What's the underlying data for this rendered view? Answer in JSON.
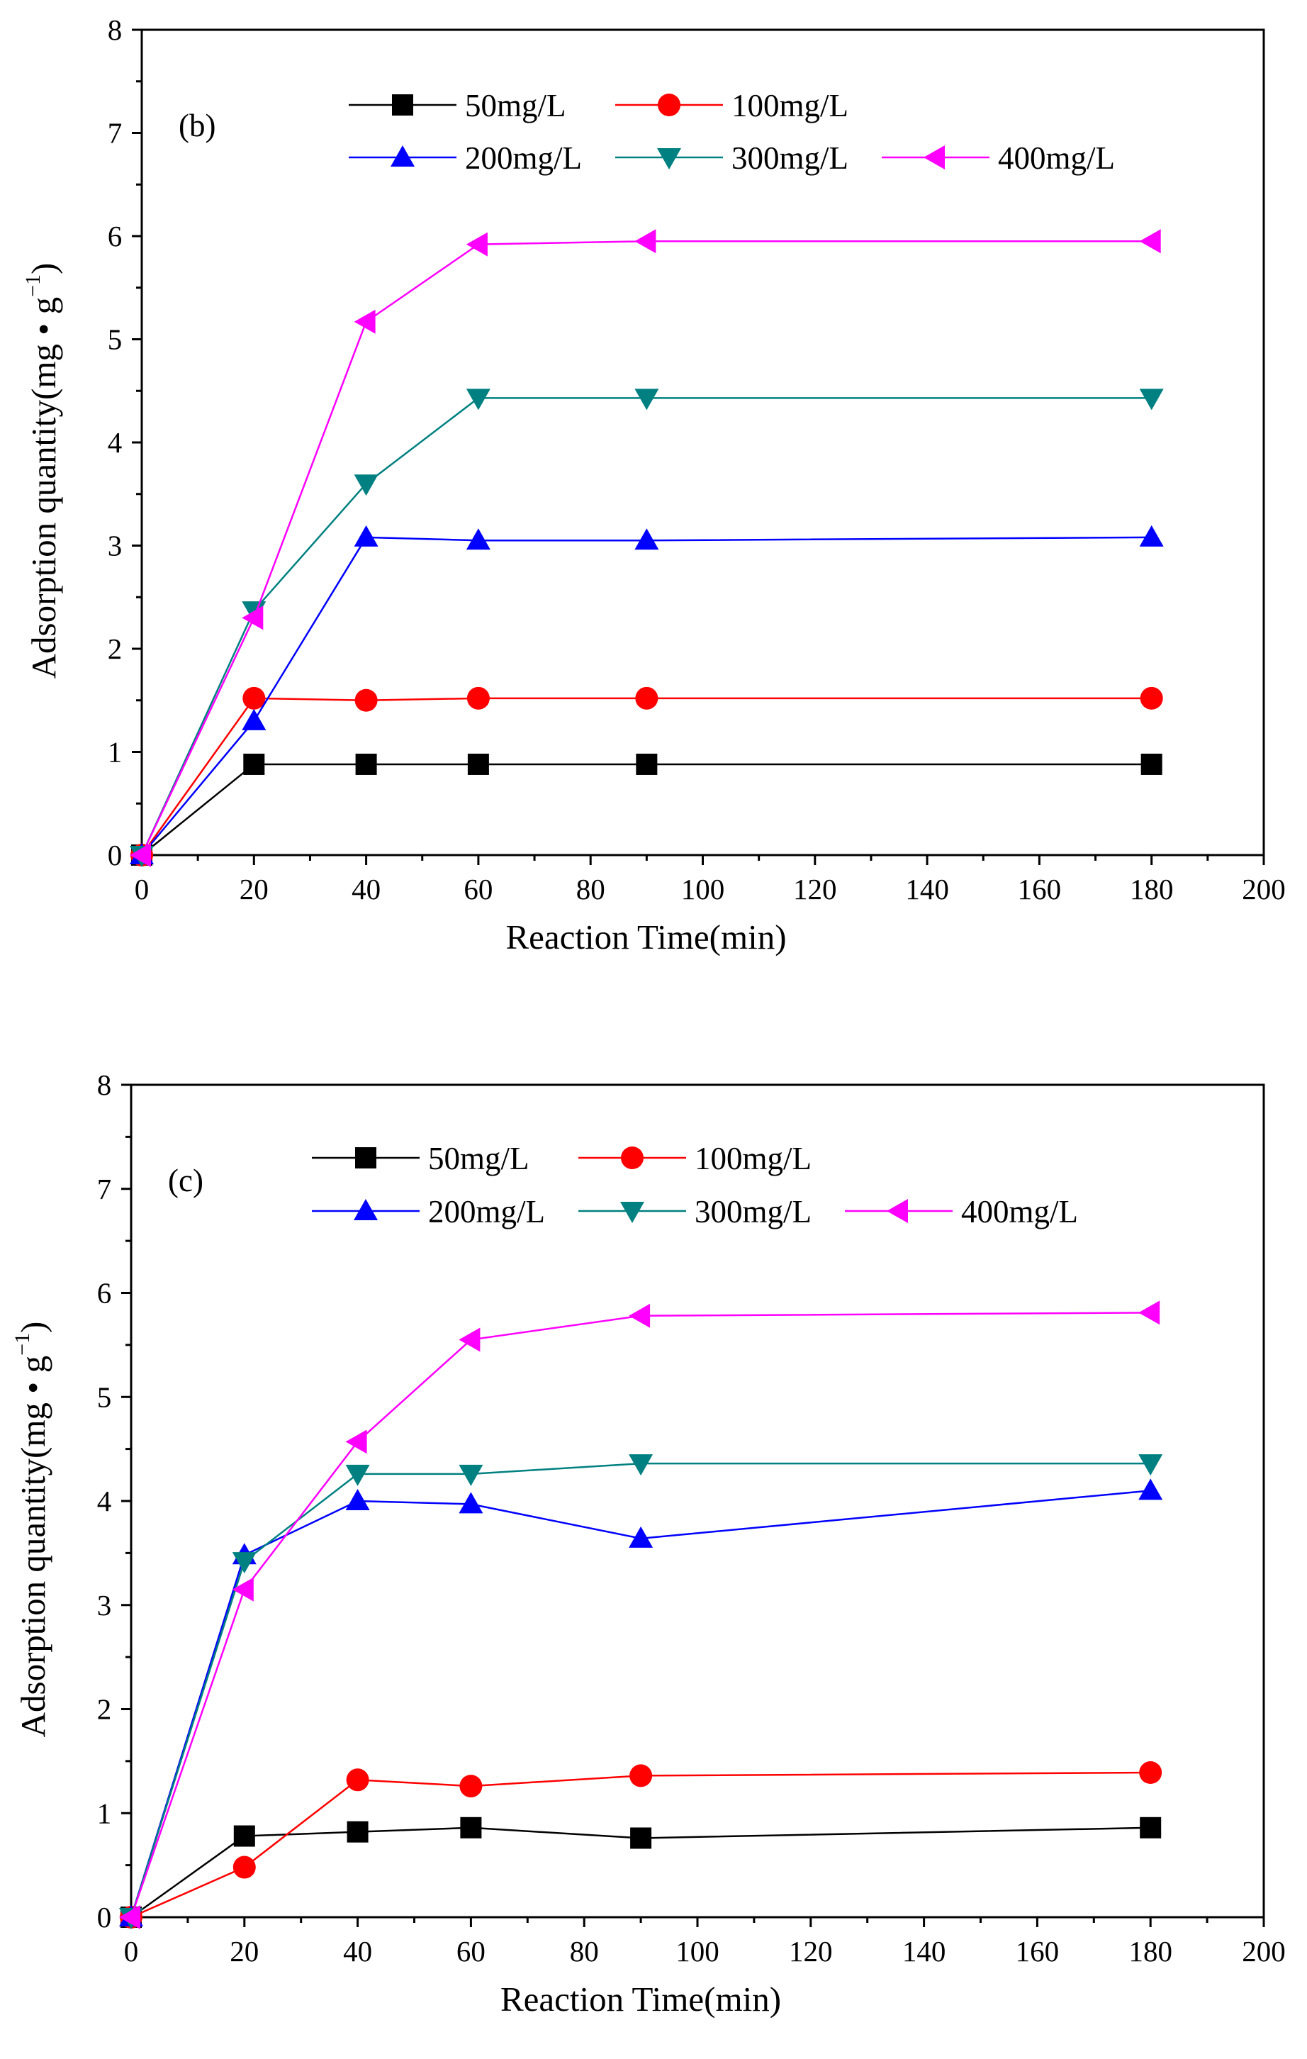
{
  "chart_data": [
    {
      "type": "line",
      "panel_label": "(b)",
      "xlabel": "Reaction Time(min)",
      "ylabel": "Adsorption quantity(mg • g",
      "ylabel_sup": "−1",
      "ylabel_close": ")",
      "xlim": [
        0,
        200
      ],
      "ylim": [
        0,
        8
      ],
      "xticks": [
        0,
        20,
        40,
        60,
        80,
        100,
        120,
        140,
        160,
        180,
        200
      ],
      "yticks": [
        0,
        1,
        2,
        3,
        4,
        5,
        6,
        7,
        8
      ],
      "grid": false,
      "legend_position": "top-right",
      "x": [
        0,
        20,
        40,
        60,
        90,
        180
      ],
      "series": [
        {
          "name": "50mg/L",
          "color": "#000000",
          "marker": "square",
          "values": [
            0,
            0.88,
            0.88,
            0.88,
            0.88,
            0.88
          ]
        },
        {
          "name": "100mg/L",
          "color": "#ff0000",
          "marker": "circle",
          "values": [
            0,
            1.52,
            1.5,
            1.52,
            1.52,
            1.52
          ]
        },
        {
          "name": "200mg/L",
          "color": "#0000ff",
          "marker": "triangle-up",
          "values": [
            0,
            1.3,
            3.08,
            3.05,
            3.05,
            3.08
          ]
        },
        {
          "name": "300mg/L",
          "color": "#008080",
          "marker": "triangle-down",
          "values": [
            0,
            2.37,
            3.6,
            4.43,
            4.43,
            4.43
          ]
        },
        {
          "name": "400mg/L",
          "color": "#ff00ff",
          "marker": "triangle-left",
          "values": [
            0,
            2.3,
            5.17,
            5.92,
            5.95,
            5.95
          ]
        }
      ]
    },
    {
      "type": "line",
      "panel_label": "(c)",
      "xlabel": "Reaction Time(min)",
      "ylabel": "Adsorption quantity(mg • g",
      "ylabel_sup": "−1",
      "ylabel_close": ")",
      "xlim": [
        0,
        200
      ],
      "ylim": [
        0,
        8
      ],
      "xticks": [
        0,
        20,
        40,
        60,
        80,
        100,
        120,
        140,
        160,
        180,
        200
      ],
      "yticks": [
        0,
        1,
        2,
        3,
        4,
        5,
        6,
        7,
        8
      ],
      "grid": false,
      "legend_position": "top-right",
      "x": [
        0,
        20,
        40,
        60,
        90,
        180
      ],
      "series": [
        {
          "name": "50mg/L",
          "color": "#000000",
          "marker": "square",
          "values": [
            0,
            0.78,
            0.82,
            0.86,
            0.76,
            0.86
          ]
        },
        {
          "name": "100mg/L",
          "color": "#ff0000",
          "marker": "circle",
          "values": [
            0,
            0.48,
            1.32,
            1.26,
            1.36,
            1.39
          ]
        },
        {
          "name": "200mg/L",
          "color": "#0000ff",
          "marker": "triangle-up",
          "values": [
            0,
            3.48,
            4.0,
            3.97,
            3.64,
            4.1
          ]
        },
        {
          "name": "300mg/L",
          "color": "#008080",
          "marker": "triangle-down",
          "values": [
            0,
            3.42,
            4.26,
            4.26,
            4.36,
            4.36
          ]
        },
        {
          "name": "400mg/L",
          "color": "#ff00ff",
          "marker": "triangle-left",
          "values": [
            0,
            3.15,
            4.57,
            5.55,
            5.78,
            5.81
          ]
        }
      ]
    }
  ]
}
